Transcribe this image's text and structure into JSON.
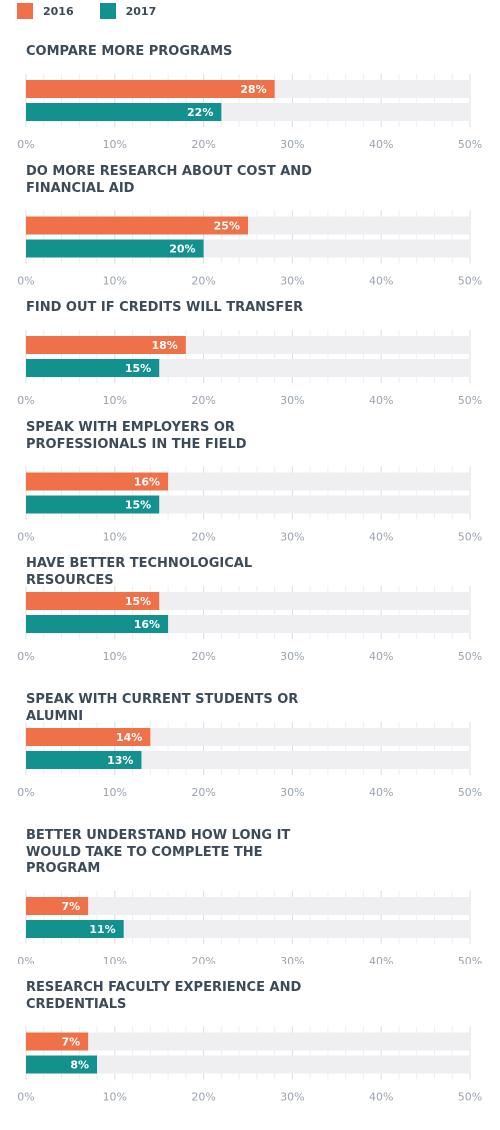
{
  "legend": [
    {
      "label": "2016",
      "color": "#ee7149"
    },
    {
      "label": "2017",
      "color": "#13918f"
    }
  ],
  "chart_data": {
    "type": "bar",
    "orientation": "horizontal",
    "xlim": [
      0,
      50
    ],
    "ticks": [
      "0%",
      "10%",
      "20%",
      "30%",
      "40%",
      "50%"
    ],
    "tick_values": [
      0,
      10,
      20,
      30,
      40,
      50
    ],
    "colors": {
      "2016": "#ee7149",
      "2017": "#13918f",
      "track": "#efeff1",
      "grid": "#e4e6ea"
    },
    "series_names": [
      "2016",
      "2017"
    ],
    "panels": [
      {
        "title": "COMPARE MORE PROGRAMS",
        "values": [
          28,
          22
        ],
        "labels": [
          "28%",
          "22%"
        ]
      },
      {
        "title": "DO MORE RESEARCH ABOUT COST AND FINANCIAL AID",
        "values": [
          25,
          20
        ],
        "labels": [
          "25%",
          "20%"
        ]
      },
      {
        "title": "FIND OUT IF CREDITS WILL TRANSFER",
        "values": [
          18,
          15
        ],
        "labels": [
          "18%",
          "15%"
        ]
      },
      {
        "title": "SPEAK WITH EMPLOYERS OR PROFESSIONALS IN THE FIELD",
        "values": [
          16,
          15
        ],
        "labels": [
          "16%",
          "15%"
        ]
      },
      {
        "title": "HAVE BETTER TECHNOLOGICAL RESOURCES",
        "values": [
          15,
          16
        ],
        "labels": [
          "15%",
          "16%"
        ]
      },
      {
        "title": "SPEAK WITH CURRENT STUDENTS OR ALUMNI",
        "values": [
          14,
          13
        ],
        "labels": [
          "14%",
          "13%"
        ]
      },
      {
        "title": "BETTER UNDERSTAND HOW LONG IT WOULD TAKE TO COMPLETE THE PROGRAM",
        "values": [
          7,
          11
        ],
        "labels": [
          "7%",
          "11%"
        ]
      },
      {
        "title": "RESEARCH FACULTY EXPERIENCE AND CREDENTIALS",
        "values": [
          7,
          8
        ],
        "labels": [
          "7%",
          "8%"
        ]
      }
    ]
  }
}
